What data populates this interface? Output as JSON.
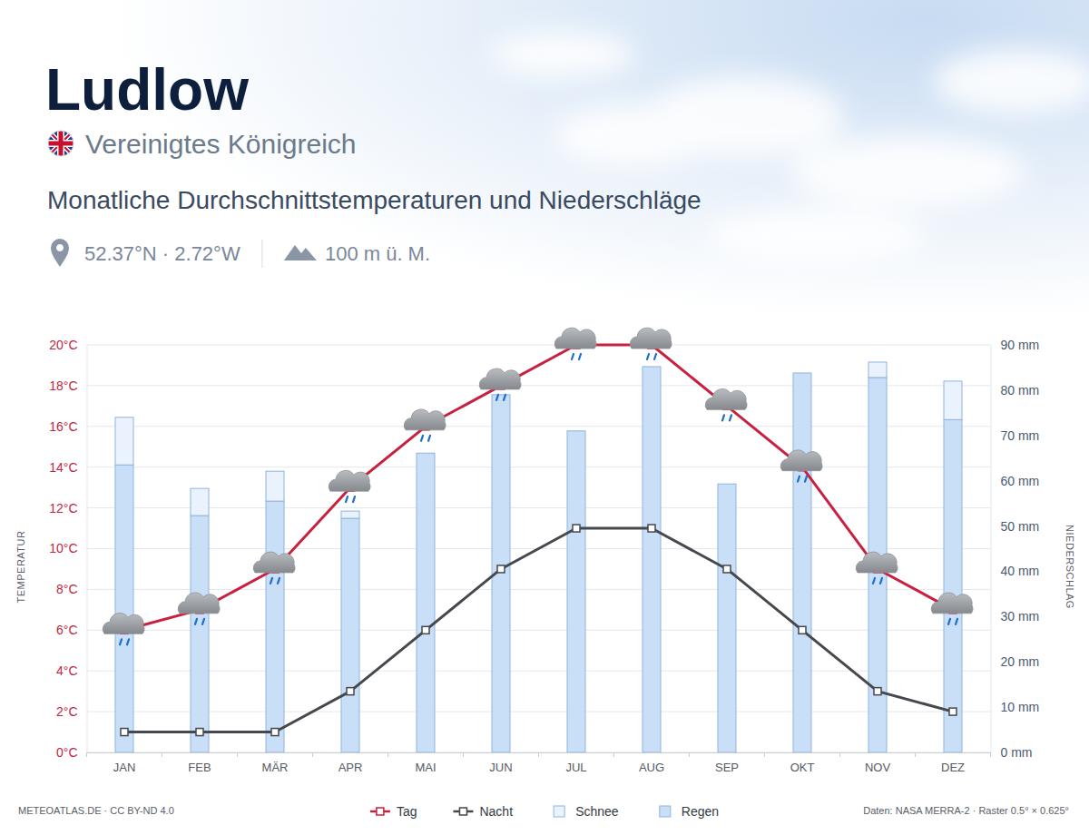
{
  "chart_data": {
    "type": "bar",
    "title": "Ludlow",
    "subtitle": "Vereinigtes Königreich",
    "description": "Monatliche Durchschnittstemperaturen und Niederschläge",
    "coordinates": "52.37°N · 2.72°W",
    "elevation": "100 m ü. M.",
    "credit": "METEOATLAS.DE · CC BY-ND 4.0",
    "source": "Daten: NASA MERRA-2 · Raster 0.5° × 0.625°",
    "ylabel": "TEMPERATUR",
    "y2label": "NIEDERSCHLAG",
    "categories": [
      "JAN",
      "FEB",
      "MÄR",
      "APR",
      "MAI",
      "JUN",
      "JUL",
      "AUG",
      "SEP",
      "OKT",
      "NOV",
      "DEZ"
    ],
    "series": [
      {
        "name": "Tag",
        "type": "line",
        "color": "#c8203f",
        "marker": "square",
        "values": [
          6,
          7,
          9,
          13,
          16,
          18,
          20,
          20,
          17,
          14,
          9,
          7
        ]
      },
      {
        "name": "Nacht",
        "type": "line",
        "color": "#45484d",
        "marker": "square",
        "values": [
          1,
          1,
          1,
          3,
          6,
          9,
          11,
          11,
          9,
          6,
          3,
          2
        ]
      },
      {
        "name": "Schnee",
        "type": "bar",
        "axis": "y2",
        "color": "#eaf3fd",
        "values": [
          10.5,
          6,
          6.6,
          1.6,
          0,
          0,
          0,
          0,
          0,
          0,
          3.4,
          8.5
        ]
      },
      {
        "name": "Regen",
        "type": "bar",
        "axis": "y2",
        "color": "#c9def7",
        "values": [
          63.5,
          52.3,
          55.5,
          51.7,
          66.1,
          79,
          71,
          85.2,
          59.3,
          83.8,
          82.8,
          73.5
        ]
      }
    ],
    "ylim": [
      0,
      20
    ],
    "yticks": [
      {
        "value": 0,
        "label": "0°C"
      },
      {
        "value": 2,
        "label": "2°C"
      },
      {
        "value": 4,
        "label": "4°C"
      },
      {
        "value": 6,
        "label": "6°C"
      },
      {
        "value": 8,
        "label": "8°C"
      },
      {
        "value": 10,
        "label": "10°C"
      },
      {
        "value": 12,
        "label": "12°C"
      },
      {
        "value": 14,
        "label": "14°C"
      },
      {
        "value": 16,
        "label": "16°C"
      },
      {
        "value": 18,
        "label": "18°C"
      },
      {
        "value": 20,
        "label": "20°C"
      }
    ],
    "y2lim": [
      0,
      90
    ],
    "y2ticks": [
      {
        "value": 0,
        "label": "0 mm"
      },
      {
        "value": 10,
        "label": "10 mm"
      },
      {
        "value": 20,
        "label": "20 mm"
      },
      {
        "value": 30,
        "label": "30 mm"
      },
      {
        "value": 40,
        "label": "40 mm"
      },
      {
        "value": 50,
        "label": "50 mm"
      },
      {
        "value": 60,
        "label": "60 mm"
      },
      {
        "value": 70,
        "label": "70 mm"
      },
      {
        "value": 80,
        "label": "80 mm"
      },
      {
        "value": 90,
        "label": "90 mm"
      }
    ],
    "stacked": true,
    "grid": true,
    "legend": "bottom"
  }
}
